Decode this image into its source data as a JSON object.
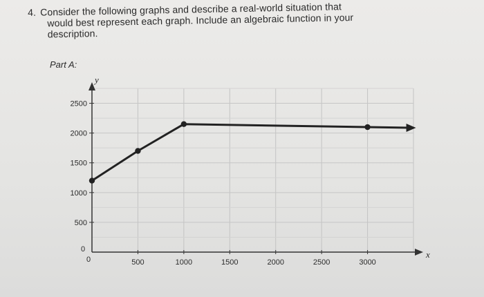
{
  "question": {
    "number": "4.",
    "line1": "Consider the following graphs and describe a real-world situation that",
    "line2": "would best represent each graph. Include an algebraic function in your",
    "line3": "description."
  },
  "part_label": "Part A:",
  "chart_data": {
    "type": "line",
    "xlabel": "x",
    "ylabel": "y",
    "xlim": [
      0,
      3500
    ],
    "ylim": [
      0,
      2750
    ],
    "x_ticks": [
      0,
      500,
      1000,
      1500,
      2000,
      2500,
      3000
    ],
    "x_tick_labels": [
      "0",
      "500",
      "1000",
      "1500",
      "2000",
      "2500",
      "3000"
    ],
    "y_ticks": [
      0,
      500,
      1000,
      1500,
      2000,
      2500
    ],
    "y_tick_labels": [
      "0",
      "500",
      "1000",
      "1500",
      "2000",
      "2500"
    ],
    "grid": true,
    "series": [
      {
        "points": [
          [
            0,
            1200
          ],
          [
            500,
            1700
          ],
          [
            1000,
            2150
          ],
          [
            3000,
            2100
          ]
        ],
        "arrow_end": true,
        "color": "#222222"
      }
    ]
  }
}
